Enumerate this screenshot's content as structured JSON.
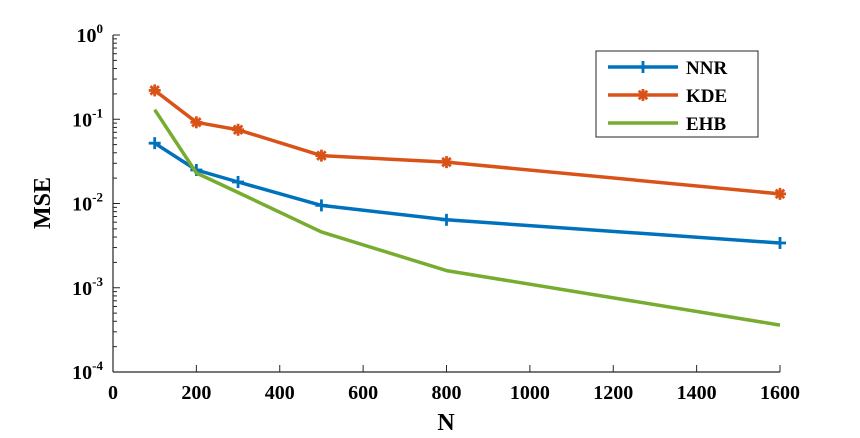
{
  "chart_data": {
    "type": "line",
    "xlabel": "N",
    "ylabel": "MSE",
    "xlim": [
      0,
      1600
    ],
    "ylim": [
      0.0001,
      1
    ],
    "yscale": "log",
    "xticks": [
      "0",
      "200",
      "400",
      "600",
      "800",
      "1000",
      "1200",
      "1400",
      "1600"
    ],
    "yticks": [
      {
        "base": "10",
        "exp": "-4",
        "value": 0.0001
      },
      {
        "base": "10",
        "exp": "-3",
        "value": 0.001
      },
      {
        "base": "10",
        "exp": "-2",
        "value": 0.01
      },
      {
        "base": "10",
        "exp": "-1",
        "value": 0.1
      },
      {
        "base": "10",
        "exp": "0",
        "value": 1
      }
    ],
    "grid": false,
    "legend_position": "top-right",
    "series": [
      {
        "name": "NNR",
        "color": "#0072BD",
        "marker": "plus",
        "x": [
          100,
          200,
          300,
          500,
          800,
          1600
        ],
        "y": [
          0.052,
          0.025,
          0.018,
          0.0095,
          0.0064,
          0.0034
        ]
      },
      {
        "name": "KDE",
        "color": "#D95319",
        "marker": "asterisk",
        "x": [
          100,
          200,
          300,
          500,
          800,
          1600
        ],
        "y": [
          0.22,
          0.092,
          0.075,
          0.037,
          0.031,
          0.013
        ]
      },
      {
        "name": "EHB",
        "color": "#77AC30",
        "marker": "none",
        "x": [
          100,
          200,
          300,
          500,
          800,
          1600
        ],
        "y": [
          0.13,
          0.023,
          0.0135,
          0.0046,
          0.0016,
          0.00036
        ]
      }
    ]
  }
}
